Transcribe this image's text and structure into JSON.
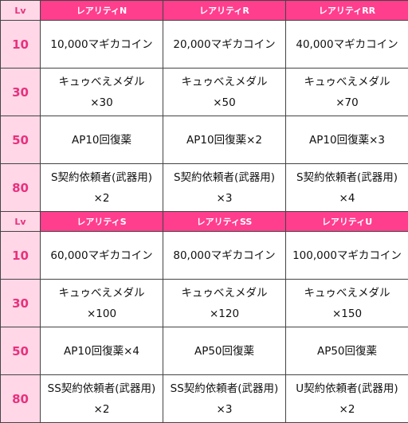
{
  "tables": [
    {
      "headers": [
        "Lv",
        "レアリティN",
        "レアリティR",
        "レアリティRR"
      ],
      "rows": [
        {
          "lv": "10",
          "cells": [
            [
              "10,000マギカコイン"
            ],
            [
              "20,000マギカコイン"
            ],
            [
              "40,000マギカコイン"
            ]
          ]
        },
        {
          "lv": "30",
          "cells": [
            [
              "キュゥべえメダル",
              "×30"
            ],
            [
              "キュゥべえメダル",
              "×50"
            ],
            [
              "キュゥべえメダル",
              "×70"
            ]
          ]
        },
        {
          "lv": "50",
          "cells": [
            [
              "AP10回復薬"
            ],
            [
              "AP10回復薬×2"
            ],
            [
              "AP10回復薬×3"
            ]
          ]
        },
        {
          "lv": "80",
          "cells": [
            [
              "S契約依頼者(武器用)",
              "×2"
            ],
            [
              "S契約依頼者(武器用)",
              "×3"
            ],
            [
              "S契約依頼者(武器用)",
              "×4"
            ]
          ]
        }
      ]
    },
    {
      "headers": [
        "Lv",
        "レアリティS",
        "レアリティSS",
        "レアリティU"
      ],
      "rows": [
        {
          "lv": "10",
          "cells": [
            [
              "60,000マギカコイン"
            ],
            [
              "80,000マギカコイン"
            ],
            [
              "100,000マギカコイン"
            ]
          ]
        },
        {
          "lv": "30",
          "cells": [
            [
              "キュゥべえメダル",
              "×100"
            ],
            [
              "キュゥべえメダル",
              "×120"
            ],
            [
              "キュゥべえメダル",
              "×150"
            ]
          ]
        },
        {
          "lv": "50",
          "cells": [
            [
              "AP10回復薬×4"
            ],
            [
              "AP50回復薬"
            ],
            [
              "AP50回復薬"
            ]
          ]
        },
        {
          "lv": "80",
          "cells": [
            [
              "SS契約依頼者(武器用)",
              "×2"
            ],
            [
              "SS契約依頼者(武器用)",
              "×3"
            ],
            [
              "U契約依頼者(武器用)",
              "×2"
            ]
          ]
        }
      ]
    }
  ],
  "colors": {
    "header_bg": "#ff3e8e",
    "header_text": "#ffffff",
    "lv_bg": "#ffd7e6",
    "lv_text": "#e8317f",
    "border": "#444444"
  }
}
